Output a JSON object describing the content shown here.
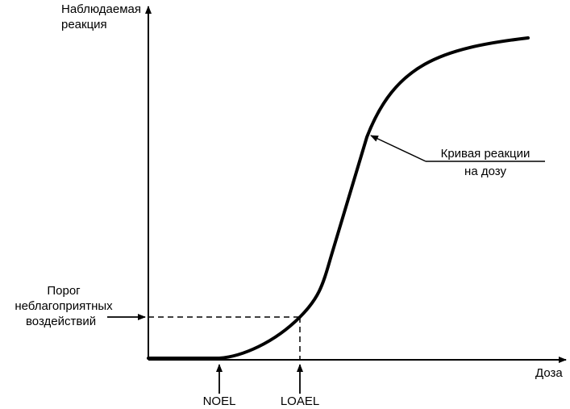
{
  "diagram": {
    "y_axis_label": [
      "Наблюдаемая",
      "реакция"
    ],
    "x_axis_label": "Доза",
    "threshold_label": [
      "Порог",
      "неблагоприятных",
      "воздействий"
    ],
    "curve_label": [
      "Кривая реакции",
      "на дозу"
    ],
    "markers": {
      "noel": "NOEL",
      "loael": "LOAEL"
    },
    "colors": {
      "ink": "#000000",
      "background": "#ffffff"
    }
  }
}
